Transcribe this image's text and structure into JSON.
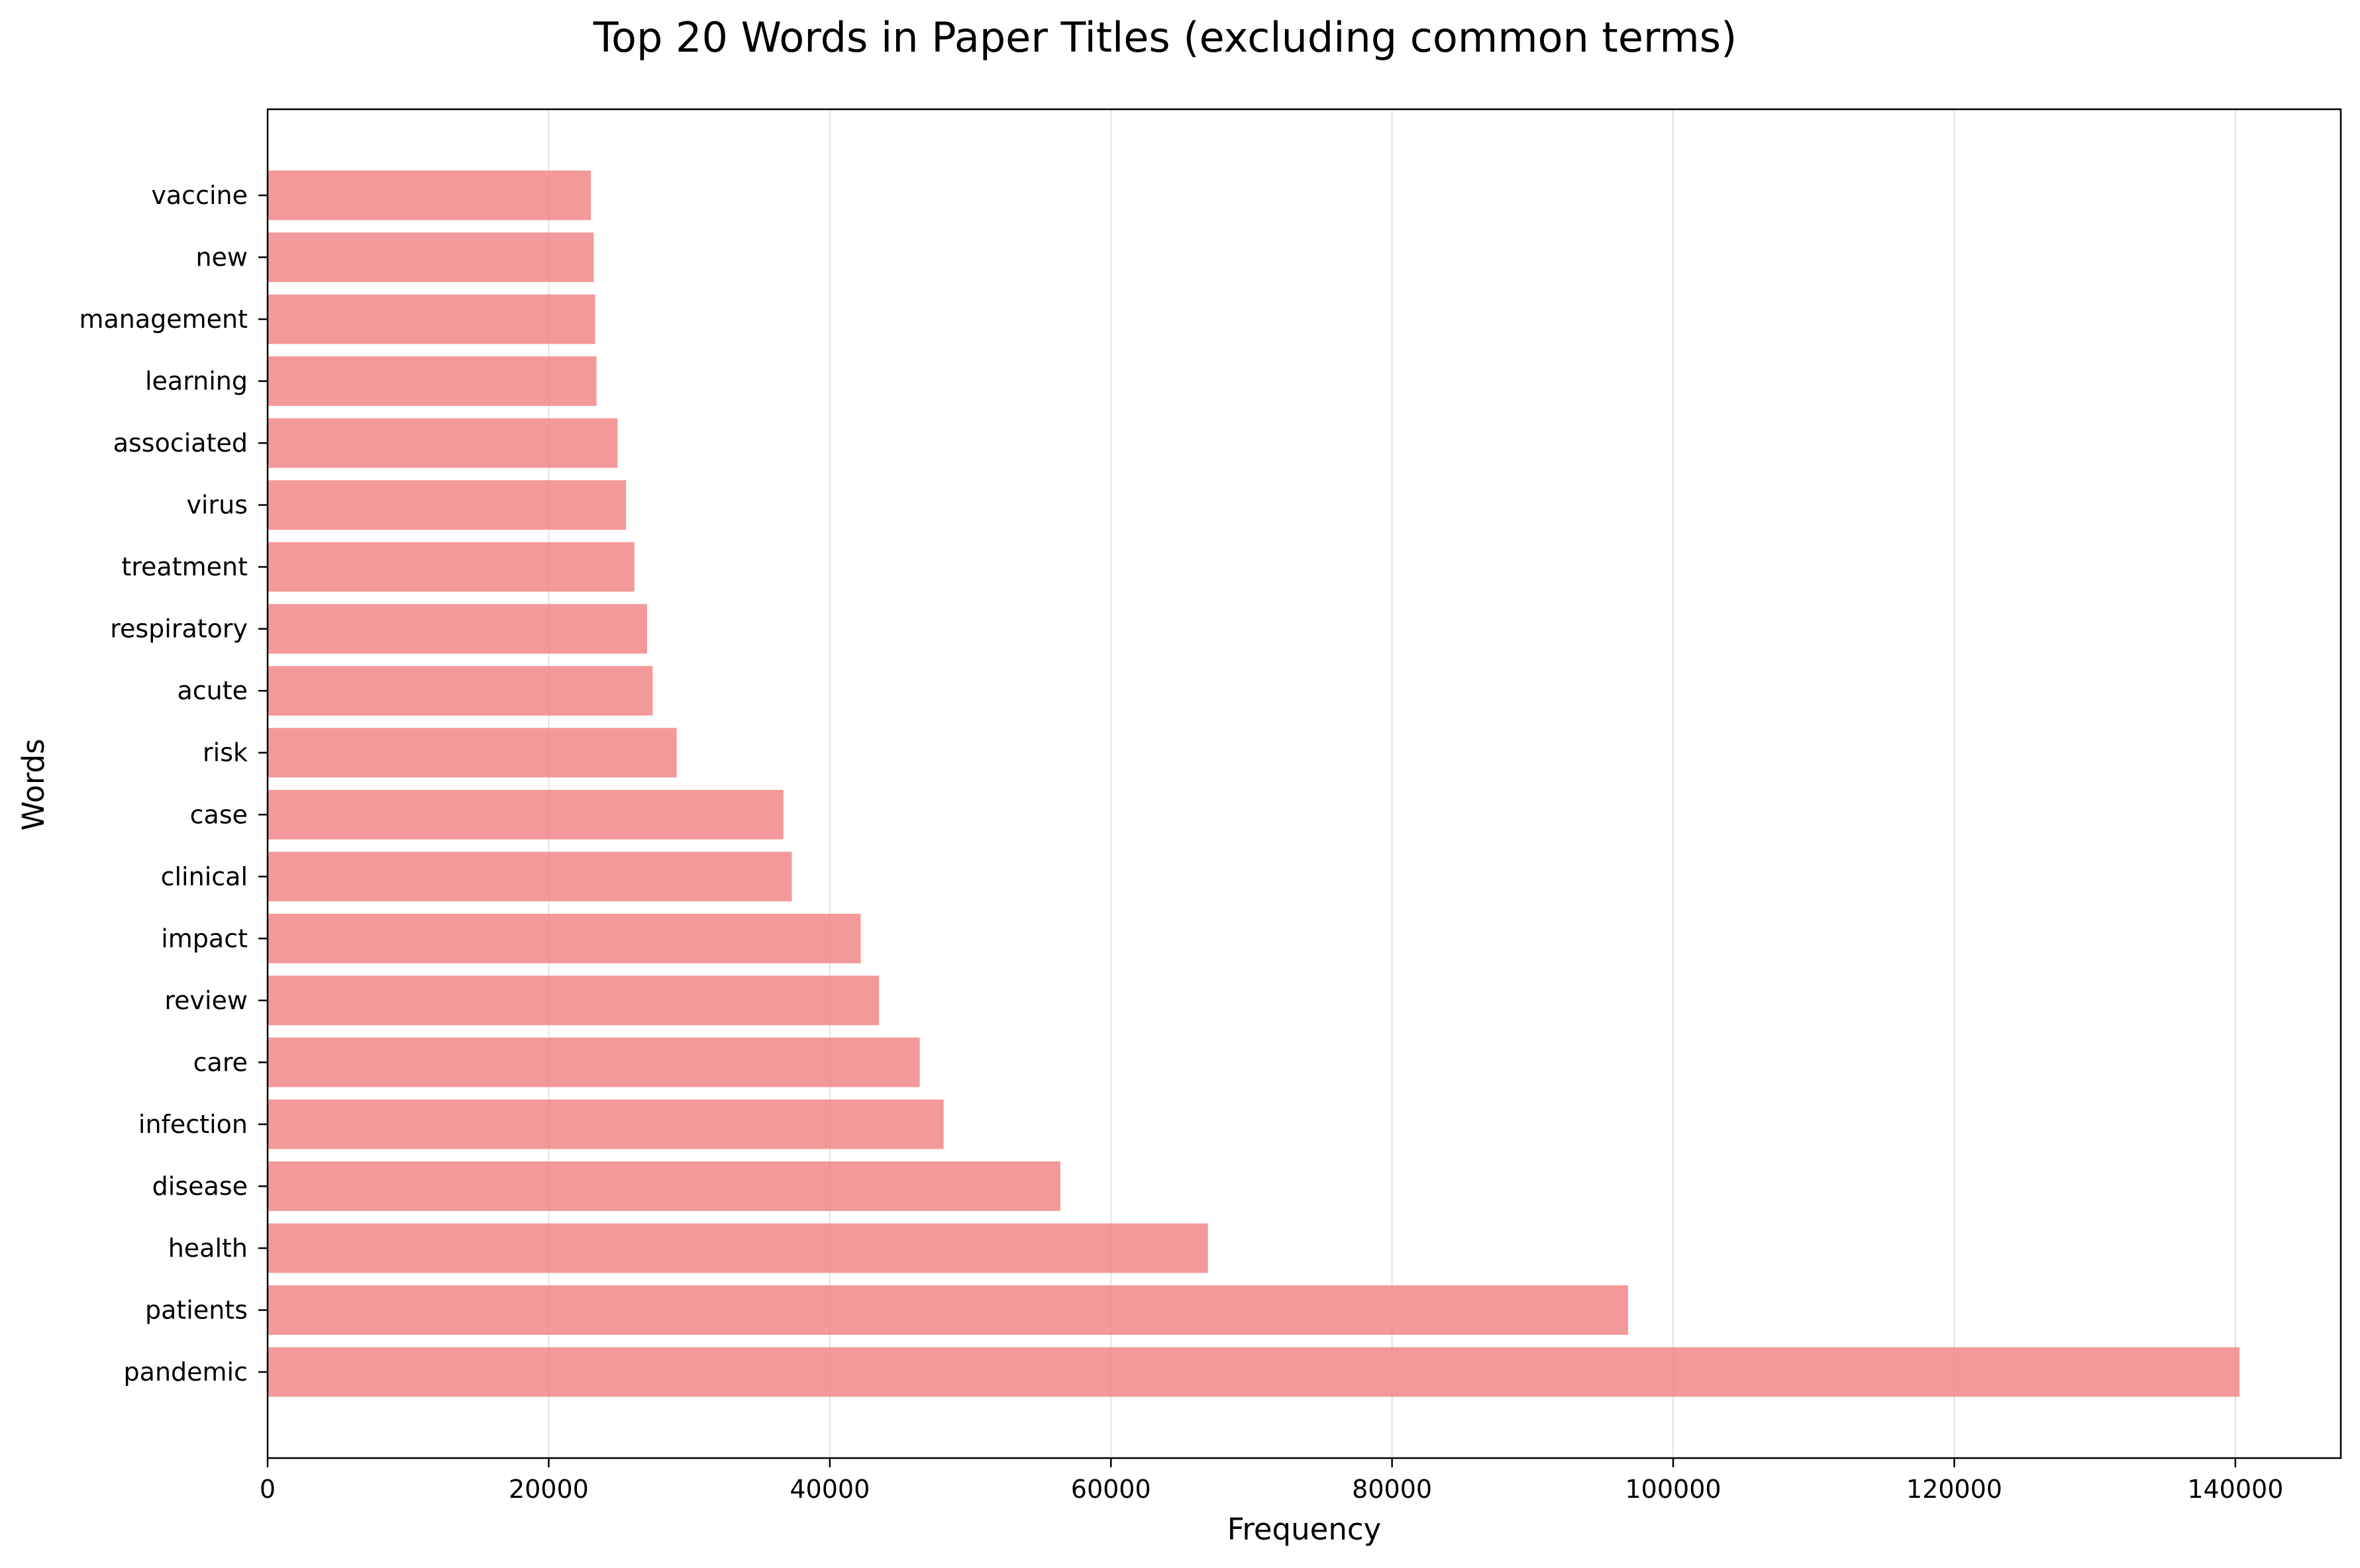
{
  "chart_data": {
    "type": "bar",
    "orientation": "horizontal",
    "title": "Top 20 Words in Paper Titles (excluding common terms)",
    "xlabel": "Frequency",
    "ylabel": "Words",
    "categories": [
      "pandemic",
      "patients",
      "health",
      "disease",
      "infection",
      "care",
      "review",
      "impact",
      "clinical",
      "case",
      "risk",
      "acute",
      "respiratory",
      "treatment",
      "virus",
      "associated",
      "learning",
      "management",
      "new",
      "vaccine"
    ],
    "values": [
      140300,
      96800,
      66900,
      56400,
      48100,
      46400,
      43500,
      42200,
      37300,
      36700,
      29100,
      27400,
      27000,
      26100,
      25500,
      24900,
      23400,
      23300,
      23200,
      23000
    ],
    "xlim": [
      0,
      147500
    ],
    "xticks": [
      "0",
      "20000",
      "40000",
      "60000",
      "80000",
      "100000",
      "120000",
      "140000"
    ],
    "grid": "x",
    "bar_color": "#f08080"
  }
}
